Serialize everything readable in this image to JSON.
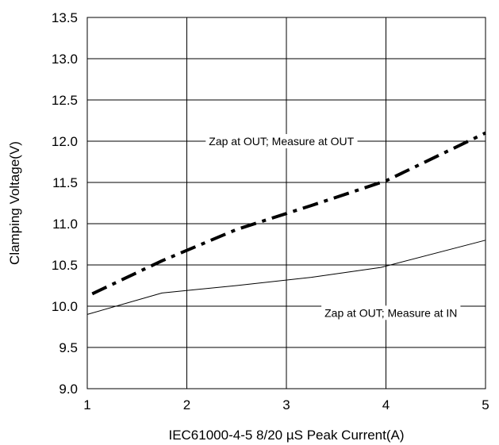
{
  "chart_data": {
    "type": "line",
    "title": "",
    "xlabel": "IEC61000-4-5 8/20 µS Peak Current(A)",
    "ylabel": "Clamping Voltage(V)",
    "xlim": [
      1,
      5
    ],
    "ylim": [
      9.0,
      13.5
    ],
    "xticks": [
      1,
      2,
      3,
      4,
      5
    ],
    "xtick_labels": [
      "1",
      "2",
      "3",
      "4",
      "5"
    ],
    "yticks": [
      9.0,
      9.5,
      10.0,
      10.5,
      11.0,
      11.5,
      12.0,
      12.5,
      13.0,
      13.5
    ],
    "ytick_labels": [
      "9.0",
      "9.5",
      "10.0",
      "10.5",
      "11.0",
      "11.5",
      "12.0",
      "12.5",
      "13.0",
      "13.5"
    ],
    "grid": true,
    "series": [
      {
        "x": [
          1.05,
          1.75,
          2.5,
          3.25,
          4.0,
          5.0
        ],
        "y": [
          10.15,
          10.55,
          10.93,
          11.22,
          11.52,
          12.1
        ],
        "color": "#000000",
        "style": "dash-dot",
        "width": "thick"
      },
      {
        "x": [
          1.0,
          1.75,
          2.5,
          3.25,
          3.95,
          5.0
        ],
        "y": [
          9.9,
          10.16,
          10.25,
          10.35,
          10.47,
          10.8
        ],
        "color": "#000000",
        "style": "solid",
        "width": "thin"
      }
    ],
    "annotations": [
      {
        "text": "Zap at OUT; Measure at OUT",
        "x": 2.95,
        "y": 12.0
      },
      {
        "text": "Zap at OUT; Measure at IN",
        "x": 4.05,
        "y": 9.92
      }
    ]
  }
}
